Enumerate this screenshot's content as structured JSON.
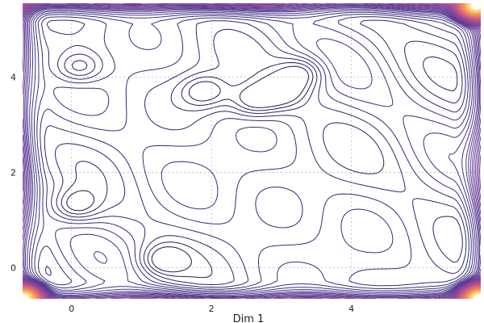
{
  "chart_data": {
    "type": "contour",
    "title": "",
    "xlabel": "Dim 1",
    "ylabel": "",
    "xlim": [
      -0.7,
      5.85
    ],
    "ylim": [
      -0.65,
      5.55
    ],
    "x_ticks": [
      0,
      2,
      4
    ],
    "y_ticks": [
      0,
      2,
      4
    ],
    "x_tick_labels": [
      "0",
      "2",
      "4"
    ],
    "y_tick_labels": [
      "0",
      "2",
      "4"
    ],
    "grid": true,
    "colormap": [
      "#1a1a4e",
      "#3b2f80",
      "#6b3f9a",
      "#9a4a98",
      "#c75b85",
      "#e8776a",
      "#f6a552",
      "#fde9a0"
    ],
    "low_regions": [
      {
        "x": 0.1,
        "y": 4.2
      },
      {
        "x": 0.05,
        "y": 1.3
      },
      {
        "x": 1.3,
        "y": 0.15
      },
      {
        "x": 3.0,
        "y": 3.7
      },
      {
        "x": 2.6,
        "y": 3.5
      },
      {
        "x": 1.9,
        "y": 3.7
      },
      {
        "x": 3.3,
        "y": 4.1
      }
    ],
    "high_regions": [
      {
        "x": 5.75,
        "y": 5.45
      },
      {
        "x": -0.65,
        "y": -0.6
      },
      {
        "x": 5.8,
        "y": -0.6
      }
    ]
  }
}
